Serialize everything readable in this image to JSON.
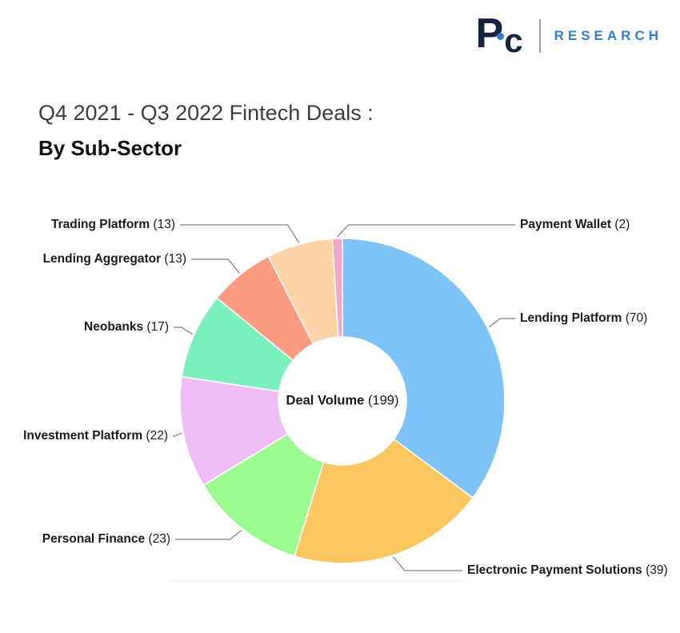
{
  "brand": {
    "logo_p": "P",
    "logo_c": "c",
    "wordmark": "RESEARCH",
    "navy": "#16233f",
    "blue": "#2e7fd6"
  },
  "title": {
    "line1": "Q4 2021 - Q3 2022 Fintech Deals :",
    "line2": "By Sub-Sector"
  },
  "chart_data": {
    "type": "pie",
    "subtype": "donut",
    "title": "Q4 2021 - Q3 2022 Fintech Deals : By Sub-Sector",
    "direction": "clockwise",
    "start_angle_deg": 0,
    "total": 199,
    "center": {
      "label": "Deal Volume",
      "count_text": "(199)"
    },
    "segments": [
      {
        "label": "Lending Platform",
        "value": 70,
        "color": "#7ec3f7"
      },
      {
        "label": "Electronic Payment Solutions",
        "value": 39,
        "color": "#fdc75f"
      },
      {
        "label": "Personal Finance",
        "value": 23,
        "color": "#9afc8e"
      },
      {
        "label": "Investment Platform",
        "value": 22,
        "color": "#efbcf7"
      },
      {
        "label": "Neobanks",
        "value": 17,
        "color": "#7bf0bc"
      },
      {
        "label": "Lending Aggregator",
        "value": 13,
        "color": "#fb9c82"
      },
      {
        "label": "Trading Platform",
        "value": 13,
        "color": "#fdd4a7"
      },
      {
        "label": "Payment Wallet",
        "value": 2,
        "color": "#f2a8ca"
      }
    ]
  }
}
